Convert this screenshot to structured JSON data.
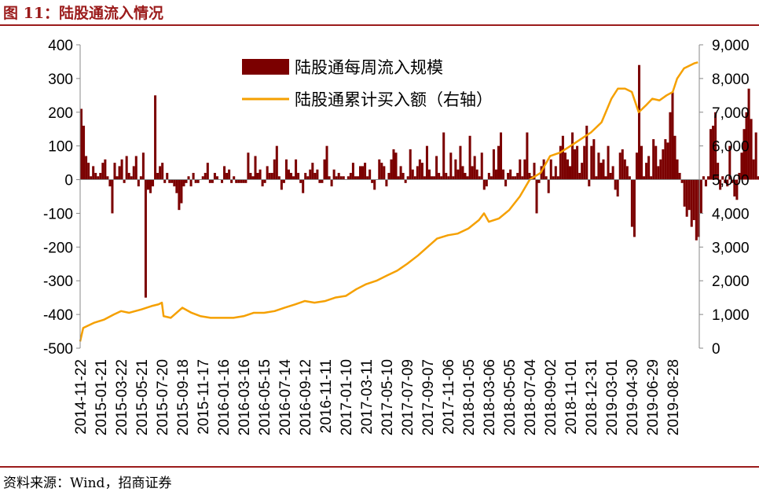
{
  "header": {
    "title": "图 11：陆股通流入情况"
  },
  "footer": {
    "source": "资料来源：Wind，招商证券"
  },
  "colors": {
    "bar": "#7b0000",
    "line": "#f5a000",
    "rule": "#9b1b1b"
  },
  "chart_data": {
    "type": "bar+line",
    "x_ticks": [
      "2014-11-22",
      "2015-01-21",
      "2015-03-22",
      "2015-05-21",
      "2015-07-20",
      "2015-09-18",
      "2015-11-17",
      "2016-01-16",
      "2016-03-16",
      "2016-05-15",
      "2016-07-14",
      "2016-09-12",
      "2016-11-11",
      "2017-01-10",
      "2017-03-11",
      "2017-05-10",
      "2017-07-09",
      "2017-09-07",
      "2017-11-06",
      "2018-01-05",
      "2018-03-06",
      "2018-05-05",
      "2018-07-04",
      "2018-09-02",
      "2018-11-01",
      "2018-12-31",
      "2019-03-01",
      "2019-04-30",
      "2019-06-29",
      "2019-08-28"
    ],
    "left_axis": {
      "min": -500,
      "max": 400,
      "ticks": [
        "400",
        "300",
        "200",
        "100",
        "0",
        "-100",
        "-200",
        "-300",
        "-400",
        "-500"
      ]
    },
    "right_axis": {
      "min": 0,
      "max": 9000,
      "ticks": [
        "9,000",
        "8,000",
        "7,000",
        "6,000",
        "5,000",
        "4,000",
        "3,000",
        "2,000",
        "1,000",
        "0"
      ]
    },
    "series": [
      {
        "name": "陆股通每周流入规模",
        "axis": "left",
        "kind": "bar",
        "x_start": "2014-11-22",
        "interval_days": 7,
        "values": [
          210,
          160,
          70,
          50,
          10,
          40,
          20,
          10,
          20,
          50,
          60,
          10,
          -20,
          -100,
          50,
          10,
          40,
          60,
          -10,
          70,
          20,
          10,
          40,
          70,
          -20,
          10,
          80,
          -350,
          -30,
          -40,
          -20,
          250,
          20,
          40,
          50,
          -10,
          20,
          -10,
          -10,
          -20,
          -40,
          -90,
          -70,
          -20,
          -10,
          10,
          -20,
          20,
          -10,
          -10,
          0,
          10,
          20,
          50,
          -10,
          -10,
          20,
          10,
          0,
          -10,
          40,
          20,
          30,
          -10,
          10,
          -10,
          -10,
          -10,
          -10,
          -10,
          80,
          20,
          10,
          70,
          20,
          30,
          -20,
          -10,
          40,
          20,
          20,
          60,
          100,
          10,
          -30,
          -10,
          60,
          30,
          20,
          10,
          60,
          20,
          -10,
          -40,
          20,
          10,
          30,
          50,
          20,
          30,
          -10,
          -10,
          60,
          100,
          10,
          -20,
          30,
          10,
          20,
          10,
          10,
          0,
          10,
          20,
          50,
          10,
          10,
          40,
          40,
          50,
          10,
          30,
          -10,
          -30,
          0,
          60,
          50,
          40,
          -20,
          20,
          60,
          90,
          80,
          10,
          40,
          20,
          -10,
          10,
          90,
          30,
          10,
          40,
          60,
          50,
          10,
          100,
          30,
          10,
          10,
          70,
          20,
          10,
          140,
          20,
          10,
          80,
          10,
          60,
          30,
          100,
          40,
          20,
          10,
          130,
          40,
          70,
          30,
          10,
          80,
          -30,
          -20,
          20,
          10,
          90,
          30,
          100,
          140,
          30,
          -20,
          20,
          30,
          10,
          10,
          20,
          60,
          10,
          60,
          140,
          20,
          10,
          50,
          -100,
          -10,
          40,
          60,
          10,
          -40,
          60,
          10,
          40,
          10,
          100,
          130,
          80,
          60,
          40,
          140,
          90,
          100,
          20,
          50,
          100,
          160,
          -20,
          100,
          120,
          10,
          80,
          50,
          60,
          10,
          100,
          20,
          40,
          -30,
          -50,
          80,
          90,
          60,
          40,
          10,
          -140,
          -170,
          80,
          340,
          100,
          10,
          50,
          70,
          10,
          120,
          100,
          40,
          60,
          90,
          120,
          110,
          200,
          260,
          130,
          60,
          20,
          -10,
          -80,
          -110,
          -90,
          -140,
          -120,
          -180,
          -170,
          -100,
          10,
          -20,
          10,
          150,
          160,
          200,
          50,
          -30,
          10,
          -10,
          -20,
          100,
          -10,
          -50,
          -60,
          20,
          80,
          150,
          200,
          270,
          180,
          60,
          140,
          10,
          20,
          -10,
          90,
          100
        ]
      },
      {
        "name": "陆股通累计买入额（右轴）",
        "axis": "right",
        "kind": "line",
        "x": [
          "2014-11-22",
          "2014-12-01",
          "2015-01-01",
          "2015-02-01",
          "2015-03-01",
          "2015-03-22",
          "2015-04-15",
          "2015-05-21",
          "2015-06-20",
          "2015-07-10",
          "2015-07-20",
          "2015-07-25",
          "2015-08-15",
          "2015-09-18",
          "2015-10-15",
          "2015-11-10",
          "2015-12-10",
          "2016-01-16",
          "2016-02-15",
          "2016-03-16",
          "2016-04-15",
          "2016-05-15",
          "2016-06-15",
          "2016-07-14",
          "2016-08-15",
          "2016-09-12",
          "2016-10-10",
          "2016-11-11",
          "2016-12-10",
          "2017-01-10",
          "2017-02-10",
          "2017-03-11",
          "2017-04-10",
          "2017-05-10",
          "2017-06-10",
          "2017-07-09",
          "2017-08-10",
          "2017-09-07",
          "2017-10-05",
          "2017-11-06",
          "2017-12-05",
          "2018-01-05",
          "2018-02-05",
          "2018-02-20",
          "2018-03-06",
          "2018-04-05",
          "2018-05-05",
          "2018-06-05",
          "2018-07-04",
          "2018-08-05",
          "2018-09-02",
          "2018-10-01",
          "2018-11-01",
          "2018-12-01",
          "2018-12-31",
          "2019-01-31",
          "2019-03-01",
          "2019-03-20",
          "2019-04-10",
          "2019-04-30",
          "2019-05-20",
          "2019-06-10",
          "2019-06-29",
          "2019-07-20",
          "2019-08-10",
          "2019-08-28",
          "2019-09-10",
          "2019-09-30",
          "2019-10-10",
          "2019-10-20",
          "2019-10-30",
          "2019-11-10"
        ],
        "values": [
          200,
          600,
          750,
          850,
          1000,
          1100,
          1050,
          1150,
          1250,
          1300,
          1350,
          950,
          900,
          1200,
          1050,
          950,
          900,
          900,
          900,
          950,
          1050,
          1050,
          1100,
          1200,
          1300,
          1400,
          1350,
          1400,
          1500,
          1550,
          1750,
          1900,
          2000,
          2150,
          2300,
          2500,
          2750,
          3000,
          3250,
          3350,
          3400,
          3550,
          3800,
          4000,
          3750,
          3850,
          4100,
          4500,
          5000,
          5200,
          5700,
          5800,
          6000,
          6200,
          6400,
          6700,
          7400,
          7700,
          7700,
          7600,
          7000,
          7200,
          7400,
          7350,
          7500,
          7600,
          8000,
          8300,
          8350,
          8400,
          8450,
          8480
        ]
      }
    ],
    "legend": {
      "position": "top-center"
    },
    "grid": false
  }
}
